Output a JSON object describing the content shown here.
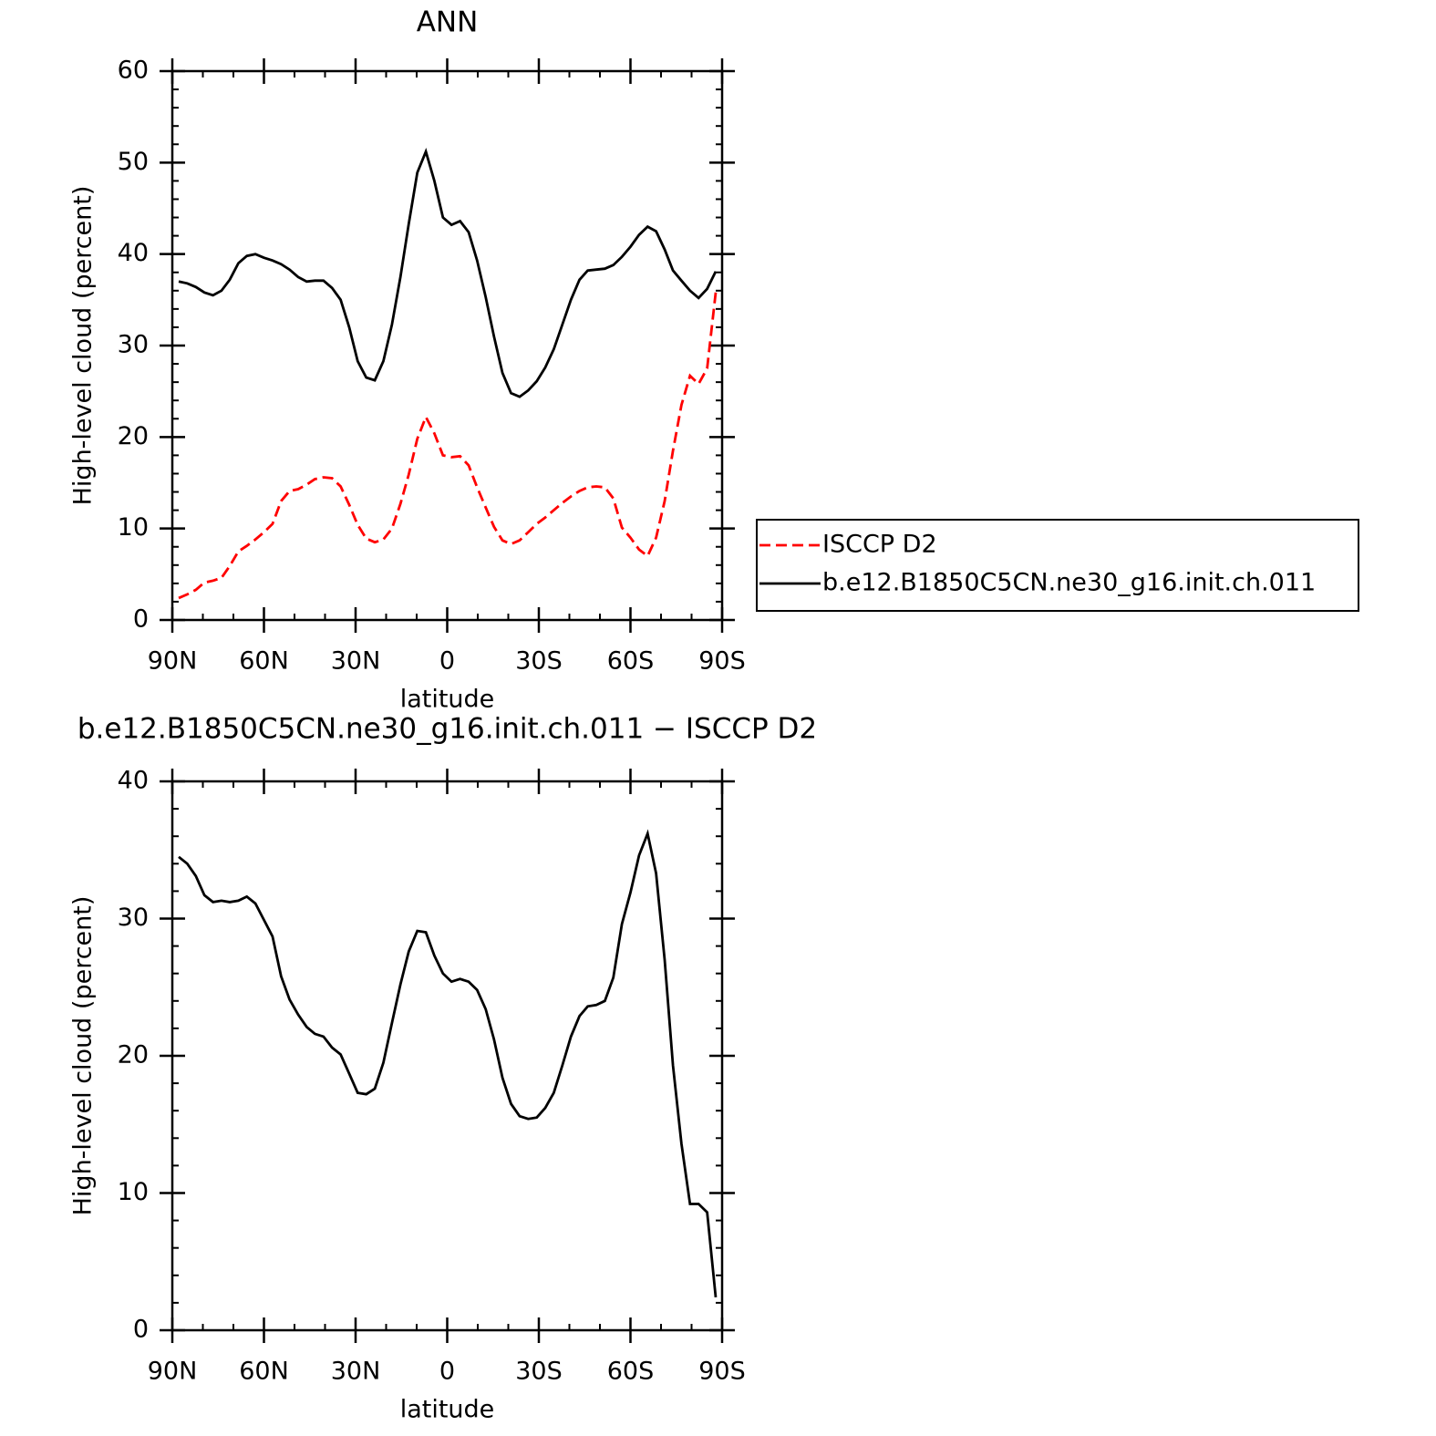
{
  "chart_data": [
    {
      "type": "line",
      "title": "ANN",
      "ylabel": "High-level cloud (percent)",
      "xlabel": "latitude",
      "xlim": [
        90,
        -90
      ],
      "xticks": [
        {
          "value": 90,
          "label": "90N"
        },
        {
          "value": 60,
          "label": "60N"
        },
        {
          "value": 30,
          "label": "30N"
        },
        0,
        {
          "value": -30,
          "label": "30S"
        },
        {
          "value": -60,
          "label": "60S"
        },
        {
          "value": -90,
          "label": "90S"
        }
      ],
      "ylim": [
        0,
        60
      ],
      "yticks": [
        0,
        10,
        20,
        30,
        40,
        50,
        60
      ],
      "x": [
        87.9,
        85.1,
        82.3,
        79.5,
        76.7,
        73.9,
        71.2,
        68.4,
        65.6,
        62.8,
        60.0,
        57.2,
        54.4,
        51.6,
        48.8,
        46.0,
        43.3,
        40.5,
        37.7,
        34.9,
        32.1,
        29.3,
        26.5,
        23.7,
        20.9,
        18.1,
        15.3,
        12.6,
        9.8,
        7.0,
        4.2,
        1.4,
        -1.4,
        -4.2,
        -7.0,
        -9.8,
        -12.6,
        -15.3,
        -18.1,
        -20.9,
        -23.7,
        -26.5,
        -29.3,
        -32.1,
        -34.9,
        -37.7,
        -40.5,
        -43.3,
        -46.0,
        -48.8,
        -51.6,
        -54.4,
        -57.2,
        -60.0,
        -62.8,
        -65.6,
        -68.4,
        -71.2,
        -73.9,
        -76.7,
        -79.5,
        -82.3,
        -85.1,
        -87.9
      ],
      "series": [
        {
          "name": "ISCCP D2",
          "color": "#ff0000",
          "dashed": true,
          "values": [
            2.4,
            2.8,
            3.3,
            4.1,
            4.3,
            4.6,
            5.9,
            7.5,
            8.1,
            8.8,
            9.6,
            10.5,
            13.0,
            14.1,
            14.3,
            14.8,
            15.4,
            15.6,
            15.5,
            14.6,
            12.6,
            10.4,
            8.9,
            8.5,
            8.8,
            10.0,
            12.7,
            15.9,
            19.8,
            22.2,
            20.4,
            18.0,
            17.8,
            17.9,
            16.9,
            14.5,
            12.3,
            10.2,
            8.7,
            8.3,
            8.7,
            9.6,
            10.5,
            11.2,
            12.0,
            12.8,
            13.5,
            14.1,
            14.5,
            14.6,
            14.5,
            13.3,
            10.1,
            9.0,
            7.7,
            7.0,
            9.0,
            13.0,
            18.5,
            23.5,
            26.7,
            25.8,
            27.5,
            35.8
          ]
        },
        {
          "name": "b.e12.B1850C5CN.ne30_g16.init.ch.011",
          "color": "#000000",
          "dashed": false,
          "values": [
            37.0,
            36.8,
            36.4,
            35.8,
            35.5,
            36.0,
            37.2,
            39.0,
            39.8,
            40.0,
            39.6,
            39.3,
            38.9,
            38.3,
            37.5,
            37.0,
            37.1,
            37.1,
            36.3,
            35.0,
            32.0,
            28.3,
            26.5,
            26.2,
            28.3,
            32.3,
            37.5,
            43.3,
            48.9,
            51.2,
            48.0,
            44.0,
            43.2,
            43.6,
            42.4,
            39.3,
            35.3,
            31.0,
            27.0,
            24.8,
            24.4,
            25.1,
            26.1,
            27.6,
            29.6,
            32.3,
            35.0,
            37.2,
            38.2,
            38.3,
            38.4,
            38.8,
            39.7,
            40.8,
            42.1,
            43.0,
            42.5,
            40.5,
            38.2,
            37.1,
            36.0,
            35.2,
            36.2,
            38.1
          ]
        }
      ],
      "legend": "right"
    },
    {
      "type": "line",
      "title": "b.e12.B1850C5CN.ne30_g16.init.ch.011 − ISCCP D2",
      "ylabel": "High-level cloud (percent)",
      "xlabel": "latitude",
      "xlim": [
        90,
        -90
      ],
      "xticks": [
        {
          "value": 90,
          "label": "90N"
        },
        {
          "value": 60,
          "label": "60N"
        },
        {
          "value": 30,
          "label": "30N"
        },
        0,
        {
          "value": -30,
          "label": "30S"
        },
        {
          "value": -60,
          "label": "60S"
        },
        {
          "value": -90,
          "label": "90S"
        }
      ],
      "ylim": [
        0,
        40
      ],
      "yticks": [
        0,
        10,
        20,
        30,
        40
      ],
      "x": [
        87.9,
        85.1,
        82.3,
        79.5,
        76.7,
        73.9,
        71.2,
        68.4,
        65.6,
        62.8,
        60.0,
        57.2,
        54.4,
        51.6,
        48.8,
        46.0,
        43.3,
        40.5,
        37.7,
        34.9,
        32.1,
        29.3,
        26.5,
        23.7,
        20.9,
        18.1,
        15.3,
        12.6,
        9.8,
        7.0,
        4.2,
        1.4,
        -1.4,
        -4.2,
        -7.0,
        -9.8,
        -12.6,
        -15.3,
        -18.1,
        -20.9,
        -23.7,
        -26.5,
        -29.3,
        -32.1,
        -34.9,
        -37.7,
        -40.5,
        -43.3,
        -46.0,
        -48.8,
        -51.6,
        -54.4,
        -57.2,
        -60.0,
        -62.8,
        -65.6,
        -68.4,
        -71.2,
        -73.9,
        -76.7,
        -79.5,
        -82.3,
        -85.1,
        -87.9
      ],
      "series": [
        {
          "color": "#000000",
          "dashed": false,
          "values": [
            34.5,
            34.0,
            33.1,
            31.7,
            31.2,
            31.3,
            31.2,
            31.3,
            31.6,
            31.1,
            29.9,
            28.7,
            25.8,
            24.1,
            23.0,
            22.1,
            21.6,
            21.4,
            20.6,
            20.1,
            18.7,
            17.3,
            17.2,
            17.6,
            19.5,
            22.4,
            25.2,
            27.6,
            29.1,
            29.0,
            27.3,
            26.0,
            25.4,
            25.6,
            25.4,
            24.8,
            23.4,
            21.2,
            18.4,
            16.5,
            15.6,
            15.4,
            15.5,
            16.2,
            17.3,
            19.3,
            21.4,
            22.9,
            23.6,
            23.7,
            24.0,
            25.7,
            29.6,
            31.9,
            34.6,
            36.2,
            33.3,
            27.0,
            19.3,
            13.6,
            9.2,
            9.2,
            8.6,
            2.4
          ]
        }
      ]
    }
  ]
}
